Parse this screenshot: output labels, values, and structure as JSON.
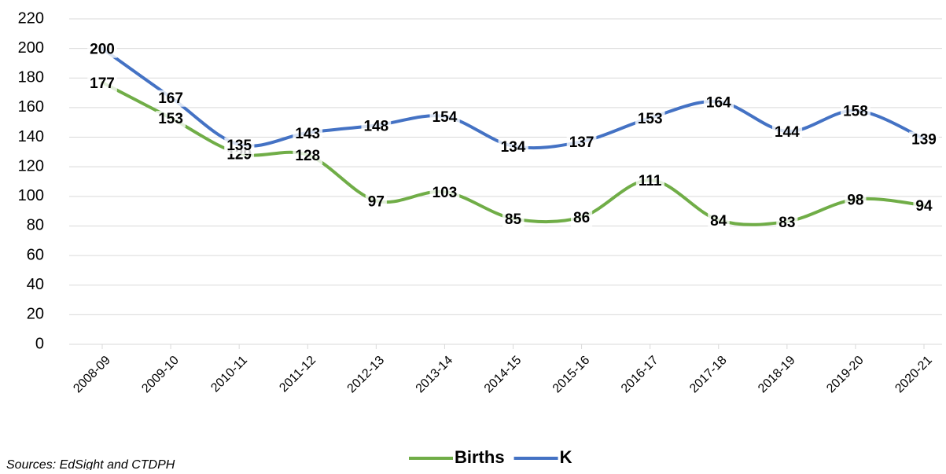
{
  "chart_data": {
    "type": "line",
    "categories": [
      "2008-09",
      "2009-10",
      "2010-11",
      "2011-12",
      "2012-13",
      "2013-14",
      "2014-15",
      "2015-16",
      "2016-17",
      "2017-18",
      "2018-19",
      "2019-20",
      "2020-21"
    ],
    "series": [
      {
        "name": "Births",
        "color": "#70ad47",
        "values": [
          177,
          153,
          129,
          128,
          97,
          103,
          85,
          86,
          111,
          84,
          83,
          98,
          94
        ]
      },
      {
        "name": "K",
        "color": "#4472c4",
        "values": [
          200,
          167,
          135,
          143,
          148,
          154,
          134,
          137,
          153,
          164,
          144,
          158,
          139
        ]
      }
    ],
    "ylim": [
      0,
      220
    ],
    "yticks": [
      0,
      20,
      40,
      60,
      80,
      100,
      120,
      140,
      160,
      180,
      200,
      220
    ],
    "grid": true,
    "smooth": true,
    "legend": "bottom",
    "source": "Sources: EdSight and CTDPH"
  }
}
